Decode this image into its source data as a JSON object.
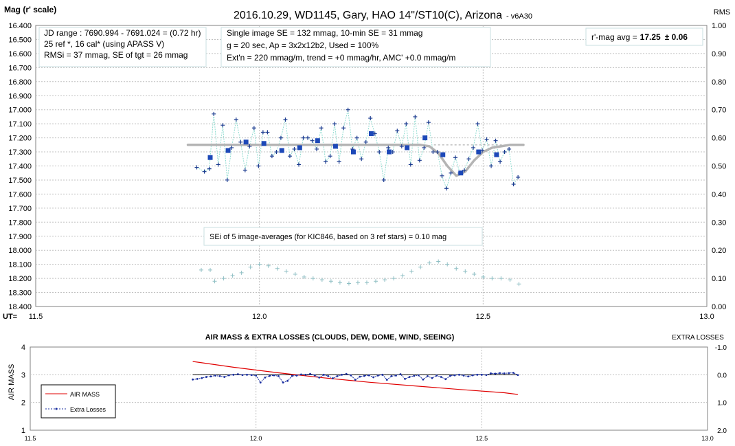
{
  "chart_data": [
    {
      "type": "scatter",
      "title": "2016.10.29,  WD1145, Gary, HAO  14\"/ST10(C), Arizona",
      "title_suffix": "- v6A30",
      "ylabel": "Mag (r' scale)",
      "y2label": "RMS",
      "xlabel": "UT=",
      "xlim": [
        11.5,
        13.0
      ],
      "ylim": [
        16.4,
        18.4
      ],
      "y_inverted": true,
      "y2lim": [
        0.0,
        1.0
      ],
      "x_ticks": [
        "11.5",
        "12.0",
        "12.5",
        "13.0"
      ],
      "y_ticks": [
        "16.400",
        "16.500",
        "16.600",
        "16.700",
        "16.800",
        "16.900",
        "17.000",
        "17.100",
        "17.200",
        "17.300",
        "17.400",
        "17.500",
        "17.600",
        "17.700",
        "17.800",
        "17.900",
        "18.000",
        "18.100",
        "18.200",
        "18.300",
        "18.400"
      ],
      "y2_ticks": [
        "1.00",
        "0.90",
        "0.80",
        "0.70",
        "0.60",
        "0.50",
        "0.40",
        "0.30",
        "0.20",
        "0.10",
        "0.00"
      ],
      "grid": true,
      "annotations": {
        "box1": [
          "JD range  : 7690.994  - 7691.024  = (0.72 hr)",
          "25 ref *, 16 cal* (using APASS V)",
          "RMSi = 37 mmag, SE of tgt = 26 mmag"
        ],
        "box2": [
          "Single image SE = 132 mmag, 10-min SE = 31 mmag",
          "g = 20 sec, Ap = 3x2x12b2, Used = 100%",
          "Ext'n = 220  mmag/m, trend = +0 mmag/hr, AMC' +0.0 mmag/m"
        ],
        "avg_label": "r'-mag avg =",
        "avg_value": "17.25",
        "avg_err": "± 0.06",
        "sei_note": "SEi of 5 image-averages (for KIC846, based on 3 ref stars) = 0.10 mag"
      },
      "colors": {
        "single": "#1a3a8f",
        "avg": "#1c48b8",
        "connector": "#8fdcd0",
        "model": "#b4b4b4",
        "rms": "#8fbfc4",
        "avg_text": "#1a4fa0"
      },
      "series": [
        {
          "kind": "single images",
          "x": [
            11.86,
            11.877,
            11.888,
            11.898,
            11.908,
            11.918,
            11.928,
            11.938,
            11.948,
            11.958,
            11.968,
            11.978,
            11.988,
            11.998,
            12.008,
            12.018,
            12.028,
            12.038,
            12.048,
            12.058,
            12.068,
            12.078,
            12.088,
            12.098,
            12.108,
            12.118,
            12.128,
            12.138,
            12.148,
            12.158,
            12.168,
            12.178,
            12.188,
            12.198,
            12.208,
            12.218,
            12.228,
            12.238,
            12.248,
            12.258,
            12.268,
            12.278,
            12.288,
            12.298,
            12.308,
            12.318,
            12.328,
            12.338,
            12.348,
            12.358,
            12.368,
            12.378,
            12.388,
            12.398,
            12.408,
            12.418,
            12.428,
            12.438,
            12.448,
            12.458,
            12.468,
            12.478,
            12.488,
            12.498,
            12.508,
            12.518,
            12.528,
            12.538,
            12.548,
            12.558,
            12.568,
            12.578
          ],
          "y": [
            17.41,
            17.44,
            17.42,
            17.03,
            17.39,
            17.11,
            17.5,
            17.27,
            17.07,
            17.23,
            17.43,
            17.26,
            17.13,
            17.4,
            17.16,
            17.16,
            17.33,
            17.3,
            17.2,
            17.07,
            17.33,
            17.28,
            17.39,
            17.2,
            17.2,
            17.22,
            17.28,
            17.13,
            17.37,
            17.33,
            17.1,
            17.37,
            17.13,
            17.0,
            17.28,
            17.2,
            17.35,
            17.23,
            17.06,
            17.17,
            17.3,
            17.5,
            17.27,
            17.3,
            17.15,
            17.26,
            17.1,
            17.39,
            17.05,
            17.36,
            17.27,
            17.09,
            17.3,
            17.3,
            17.47,
            17.56,
            17.45,
            17.34,
            17.45,
            17.43,
            17.35,
            17.27,
            17.1,
            17.29,
            17.21,
            17.4,
            17.22,
            17.37,
            17.3,
            17.28,
            17.53,
            17.48
          ]
        },
        {
          "kind": "5-image averages",
          "x": [
            11.89,
            11.93,
            11.97,
            12.01,
            12.05,
            12.09,
            12.13,
            12.17,
            12.21,
            12.25,
            12.29,
            12.33,
            12.37,
            12.41,
            12.45,
            12.49,
            12.53
          ],
          "y": [
            17.34,
            17.29,
            17.23,
            17.24,
            17.29,
            17.27,
            17.22,
            17.26,
            17.3,
            17.17,
            17.3,
            17.27,
            17.2,
            17.32,
            17.45,
            17.3,
            17.32
          ]
        },
        {
          "kind": "model fit",
          "x": [
            11.84,
            11.9,
            12.0,
            12.1,
            12.2,
            12.3,
            12.36,
            12.38,
            12.4,
            12.42,
            12.44,
            12.46,
            12.48,
            12.5,
            12.52,
            12.54,
            12.56,
            12.59
          ],
          "y": [
            17.25,
            17.25,
            17.25,
            17.25,
            17.25,
            17.25,
            17.25,
            17.26,
            17.31,
            17.4,
            17.47,
            17.44,
            17.36,
            17.3,
            17.27,
            17.26,
            17.25,
            17.25
          ]
        },
        {
          "kind": "avg reference",
          "x": [
            12.39,
            12.59
          ],
          "y": [
            17.25,
            17.25
          ]
        },
        {
          "kind": "rms",
          "x": [
            11.87,
            11.89,
            11.9,
            11.92,
            11.94,
            11.96,
            11.98,
            12.0,
            12.02,
            12.04,
            12.06,
            12.08,
            12.1,
            12.12,
            12.14,
            12.16,
            12.18,
            12.2,
            12.22,
            12.24,
            12.26,
            12.28,
            12.3,
            12.32,
            12.34,
            12.36,
            12.38,
            12.4,
            12.42,
            12.44,
            12.46,
            12.48,
            12.5,
            12.52,
            12.54,
            12.56,
            12.58
          ],
          "y": [
            0.13,
            0.13,
            0.09,
            0.1,
            0.11,
            0.12,
            0.14,
            0.15,
            0.145,
            0.135,
            0.125,
            0.115,
            0.105,
            0.1,
            0.095,
            0.09,
            0.085,
            0.082,
            0.085,
            0.085,
            0.09,
            0.095,
            0.1,
            0.11,
            0.125,
            0.14,
            0.155,
            0.16,
            0.15,
            0.135,
            0.125,
            0.115,
            0.105,
            0.1,
            0.1,
            0.095,
            0.08
          ]
        }
      ]
    },
    {
      "type": "line",
      "title": "AIR MASS & EXTRA LOSSES (CLOUDS, DEW, DOME, WIND, SEEING)",
      "ylabel": "AIR MASS",
      "y2label": "EXTRA LOSSES",
      "xlim": [
        11.5,
        13.0
      ],
      "ylim": [
        1,
        4
      ],
      "y2lim": [
        2.0,
        -1.0
      ],
      "x_ticks": [
        "11.5",
        "12.0",
        "12.5",
        "13.0"
      ],
      "y_ticks": [
        "4",
        "3",
        "2",
        "1"
      ],
      "y2_ticks": [
        "-1.0",
        "0.0",
        "1.0",
        "2.0"
      ],
      "grid": true,
      "legend": "bottom-left",
      "colors": {
        "air_mass": "#e00000",
        "extra_losses": "#1a2fa0",
        "zero_line": "#000000"
      },
      "series": [
        {
          "name": "AIR MASS",
          "x": [
            11.86,
            11.95,
            12.05,
            12.15,
            12.25,
            12.35,
            12.45,
            12.55,
            12.58
          ],
          "y": [
            3.48,
            3.27,
            3.07,
            2.89,
            2.73,
            2.6,
            2.47,
            2.35,
            2.29
          ]
        },
        {
          "name": "Extra Losses",
          "x": [
            11.86,
            11.87,
            11.88,
            11.89,
            11.9,
            11.91,
            11.92,
            11.93,
            11.94,
            11.95,
            11.96,
            11.97,
            11.98,
            11.99,
            12.0,
            12.01,
            12.02,
            12.03,
            12.04,
            12.05,
            12.06,
            12.07,
            12.08,
            12.09,
            12.1,
            12.11,
            12.12,
            12.13,
            12.14,
            12.15,
            12.16,
            12.17,
            12.18,
            12.19,
            12.2,
            12.21,
            12.22,
            12.23,
            12.24,
            12.25,
            12.26,
            12.27,
            12.28,
            12.29,
            12.3,
            12.31,
            12.32,
            12.33,
            12.34,
            12.35,
            12.36,
            12.37,
            12.38,
            12.39,
            12.4,
            12.41,
            12.42,
            12.43,
            12.44,
            12.45,
            12.46,
            12.47,
            12.48,
            12.49,
            12.5,
            12.51,
            12.52,
            12.53,
            12.54,
            12.55,
            12.56,
            12.57,
            12.58
          ],
          "y": [
            0.17,
            0.15,
            0.12,
            0.08,
            0.06,
            0.03,
            0.05,
            0.08,
            0.02,
            0.0,
            -0.02,
            0.01,
            0.0,
            0.01,
            0.03,
            0.28,
            0.1,
            0.04,
            0.02,
            0.05,
            0.28,
            0.22,
            0.04,
            0.03,
            -0.01,
            0.0,
            -0.03,
            0.02,
            0.1,
            0.0,
            0.05,
            0.13,
            0.05,
            0.0,
            -0.03,
            0.02,
            0.18,
            0.07,
            0.04,
            0.02,
            0.09,
            0.03,
            0.0,
            0.18,
            0.05,
            0.03,
            -0.02,
            0.15,
            0.08,
            0.04,
            0.02,
            0.17,
            0.05,
            0.12,
            0.03,
            0.08,
            0.16,
            0.04,
            0.02,
            0.0,
            0.03,
            0.06,
            0.02,
            0.0,
            0.0,
            0.01,
            -0.05,
            -0.04,
            -0.06,
            -0.05,
            -0.06,
            -0.07,
            0.01
          ]
        }
      ]
    }
  ]
}
